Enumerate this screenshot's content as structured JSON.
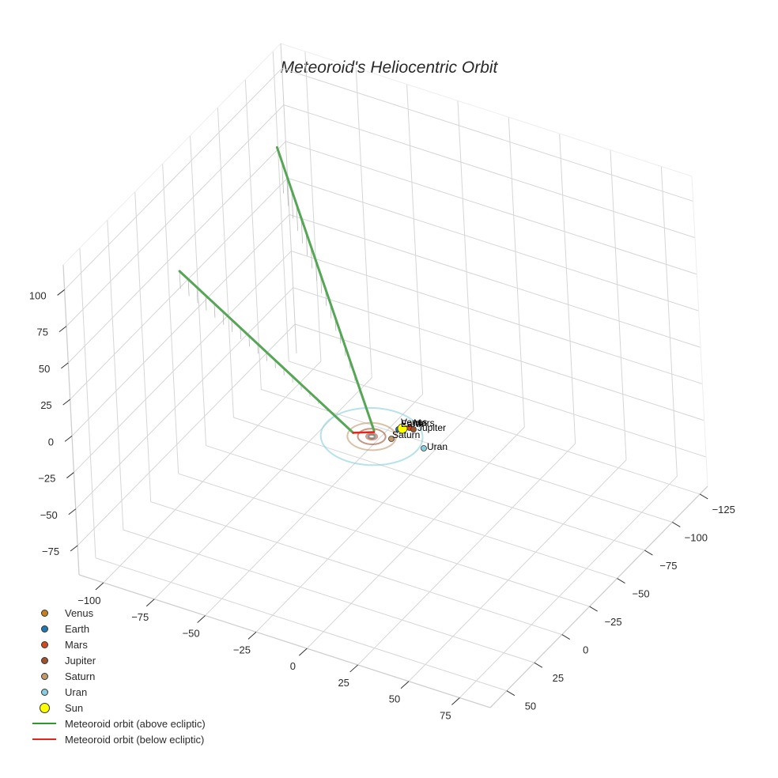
{
  "title": "Meteoroid's Heliocentric Orbit",
  "chart_data": {
    "type": "scatter3d",
    "title": "Meteoroid's Heliocentric Orbit",
    "axes": {
      "x": {
        "ticks": [
          -100,
          -75,
          -50,
          -25,
          0,
          25,
          50,
          75
        ],
        "range": [
          -112,
          90
        ]
      },
      "y": {
        "ticks": [
          -125,
          -100,
          -75,
          -50,
          -25,
          0,
          25,
          50
        ],
        "range": [
          -132,
          65
        ]
      },
      "z": {
        "ticks": [
          -75,
          -50,
          -25,
          0,
          25,
          50,
          75,
          100
        ],
        "range": [
          -95,
          117
        ]
      },
      "grid": true
    },
    "legend_position": "bottom-left",
    "planets": [
      {
        "name": "Venus",
        "label": "Venus",
        "color": "#c87f1e",
        "orbit_radius": 0.72,
        "pos": [
          0.5,
          -0.5,
          0
        ]
      },
      {
        "name": "Earth",
        "label": "Earth",
        "color": "#1f77b4",
        "orbit_radius": 1.0,
        "pos": [
          -0.7,
          -0.7,
          0
        ]
      },
      {
        "name": "Mars",
        "label": "Mars",
        "color": "#d24a1e",
        "orbit_radius": 1.52,
        "pos": [
          1.2,
          -0.9,
          0
        ]
      },
      {
        "name": "Jupiter",
        "label": "Jupiter",
        "color": "#a0522d",
        "orbit_radius": 5.2,
        "pos": [
          2.5,
          -4.5,
          0
        ]
      },
      {
        "name": "Saturn",
        "label": "Saturn",
        "color": "#c19a6b",
        "orbit_radius": 9.5,
        "pos": [
          8.5,
          4.3,
          0
        ]
      },
      {
        "name": "Uran",
        "label": "Uran",
        "color": "#87cedf",
        "orbit_radius": 19.2,
        "pos": [
          19.0,
          -2.8,
          0
        ]
      }
    ],
    "sun": {
      "name": "Sun",
      "color": "#ffff00",
      "pos": [
        0,
        0,
        0
      ]
    },
    "series": [
      {
        "name": "Meteoroid orbit (above ecliptic)",
        "color": "#2ca02c",
        "segments": [
          {
            "from": [
              -108,
              -28,
              43
            ],
            "to": [
              -8,
              2,
              0.5
            ]
          },
          {
            "from": [
              -1,
              -4,
              0.5
            ],
            "to": [
              -95,
              -95,
              82
            ]
          }
        ]
      },
      {
        "name": "Meteoroid orbit (below ecliptic)",
        "color": "#e8221d",
        "segments": [
          {
            "from": [
              -8,
              2,
              0.5
            ],
            "to": [
              -1,
              -4,
              -0.5
            ]
          }
        ]
      }
    ]
  },
  "legend": {
    "items": [
      {
        "label": "Venus",
        "kind": "dot",
        "color": "#c87f1e",
        "size": 9
      },
      {
        "label": "Earth",
        "kind": "dot",
        "color": "#1f77b4",
        "size": 9
      },
      {
        "label": "Mars",
        "kind": "dot",
        "color": "#d24a1e",
        "size": 9
      },
      {
        "label": "Jupiter",
        "kind": "dot",
        "color": "#a0522d",
        "size": 9
      },
      {
        "label": "Saturn",
        "kind": "dot",
        "color": "#c19a6b",
        "size": 9
      },
      {
        "label": "Uran",
        "kind": "dot",
        "color": "#87cedf",
        "size": 9
      },
      {
        "label": "Sun",
        "kind": "dot",
        "color": "#ffff00",
        "size": 13
      },
      {
        "label": "Meteoroid orbit (above ecliptic)",
        "kind": "line",
        "color": "#2a9a2a"
      },
      {
        "label": "Meteoroid orbit (below ecliptic)",
        "kind": "line",
        "color": "#e8221d"
      }
    ]
  }
}
